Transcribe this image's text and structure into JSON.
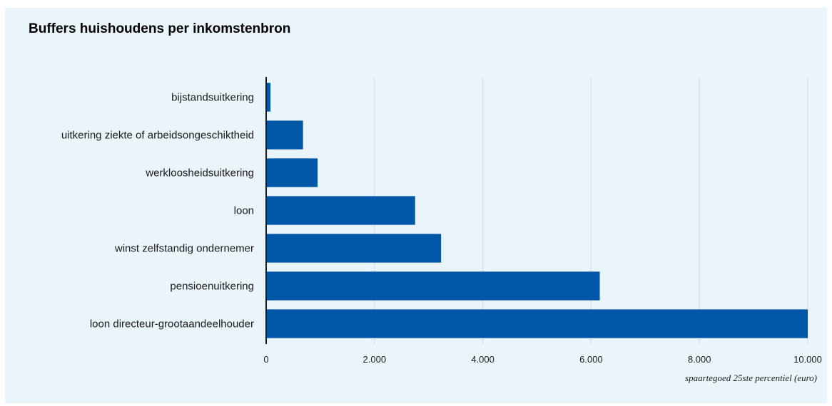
{
  "chart_data": {
    "type": "bar",
    "orientation": "horizontal",
    "title": "Buffers huishoudens per inkomstenbron",
    "xlabel": "spaartegoed 25ste percentiel (euro)",
    "ylabel": "",
    "categories": [
      "bijstandsuitkering",
      "uitkering ziekte of arbeidsongeschiktheid",
      "werkloosheidsuitkering",
      "loon",
      "winst zelfstandig ondernemer",
      "pensioenuitkering",
      "loon directeur-grootaandeelhouder"
    ],
    "values": [
      80,
      680,
      950,
      2750,
      3230,
      6160,
      10000
    ],
    "xlim": [
      0,
      10000
    ],
    "xticks": [
      0,
      2000,
      4000,
      6000,
      8000,
      10000
    ],
    "xtick_labels": [
      "0",
      "2.000",
      "4.000",
      "6.000",
      "8.000",
      "10.000"
    ],
    "grid": "vertical",
    "legend": "none",
    "bar_color": "#0057a8",
    "background_color": "#e9f4fb",
    "grid_color": "#cfdde7"
  }
}
